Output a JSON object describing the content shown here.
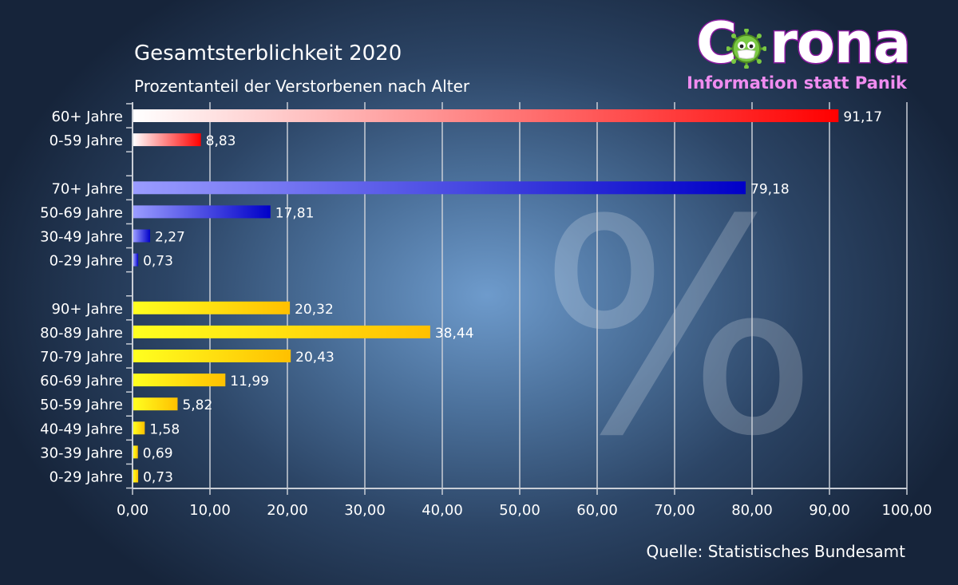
{
  "header": {
    "title": "Gesamtsterblichkeit 2020",
    "subtitle": "Prozentanteil der Verstorbenen nach Alter"
  },
  "logo": {
    "word_left": "C",
    "word_right": "rona",
    "tagline": "Information statt Panik"
  },
  "footer": {
    "source": "Quelle: Statistisches Bundesamt"
  },
  "watermark": "%",
  "colors": {
    "red_start": "#ffffff",
    "red_end": "#ff0000",
    "blue_start": "#9a9cff",
    "blue_end": "#0000c8",
    "yellow_start": "#ffff20",
    "yellow_end": "#ffc000",
    "logo_stroke": "#8a1aa0",
    "logo_tag": "#f08cf0",
    "virus": "#7ac943"
  },
  "chart_data": {
    "type": "bar",
    "orientation": "horizontal",
    "title": "Gesamtsterblichkeit 2020",
    "subtitle": "Prozentanteil der Verstorbenen nach Alter",
    "xlabel": "",
    "ylabel": "",
    "xlim": [
      0,
      100
    ],
    "xticks": [
      "0,00",
      "10,00",
      "20,00",
      "30,00",
      "40,00",
      "50,00",
      "60,00",
      "70,00",
      "80,00",
      "90,00",
      "100,00"
    ],
    "grid": true,
    "groups": [
      {
        "name": "group-2",
        "color": "red",
        "items": [
          {
            "label": "60+ Jahre",
            "value": 91.17,
            "value_label": "91,17"
          },
          {
            "label": "0-59 Jahre",
            "value": 8.83,
            "value_label": "8,83"
          }
        ]
      },
      {
        "name": "group-4",
        "color": "blue",
        "items": [
          {
            "label": "70+ Jahre",
            "value": 79.18,
            "value_label": "79,18"
          },
          {
            "label": "50-69 Jahre",
            "value": 17.81,
            "value_label": "17,81"
          },
          {
            "label": "30-49 Jahre",
            "value": 2.27,
            "value_label": "2,27"
          },
          {
            "label": "0-29 Jahre",
            "value": 0.73,
            "value_label": "0,73"
          }
        ]
      },
      {
        "name": "group-8",
        "color": "yellow",
        "items": [
          {
            "label": "90+ Jahre",
            "value": 20.32,
            "value_label": "20,32"
          },
          {
            "label": "80-89 Jahre",
            "value": 38.44,
            "value_label": "38,44"
          },
          {
            "label": "70-79 Jahre",
            "value": 20.43,
            "value_label": "20,43"
          },
          {
            "label": "60-69 Jahre",
            "value": 11.99,
            "value_label": "11,99"
          },
          {
            "label": "50-59 Jahre",
            "value": 5.82,
            "value_label": "5,82"
          },
          {
            "label": "40-49 Jahre",
            "value": 1.58,
            "value_label": "1,58"
          },
          {
            "label": "30-39 Jahre",
            "value": 0.69,
            "value_label": "0,69"
          },
          {
            "label": "0-29 Jahre",
            "value": 0.73,
            "value_label": "0,73"
          }
        ]
      }
    ]
  }
}
